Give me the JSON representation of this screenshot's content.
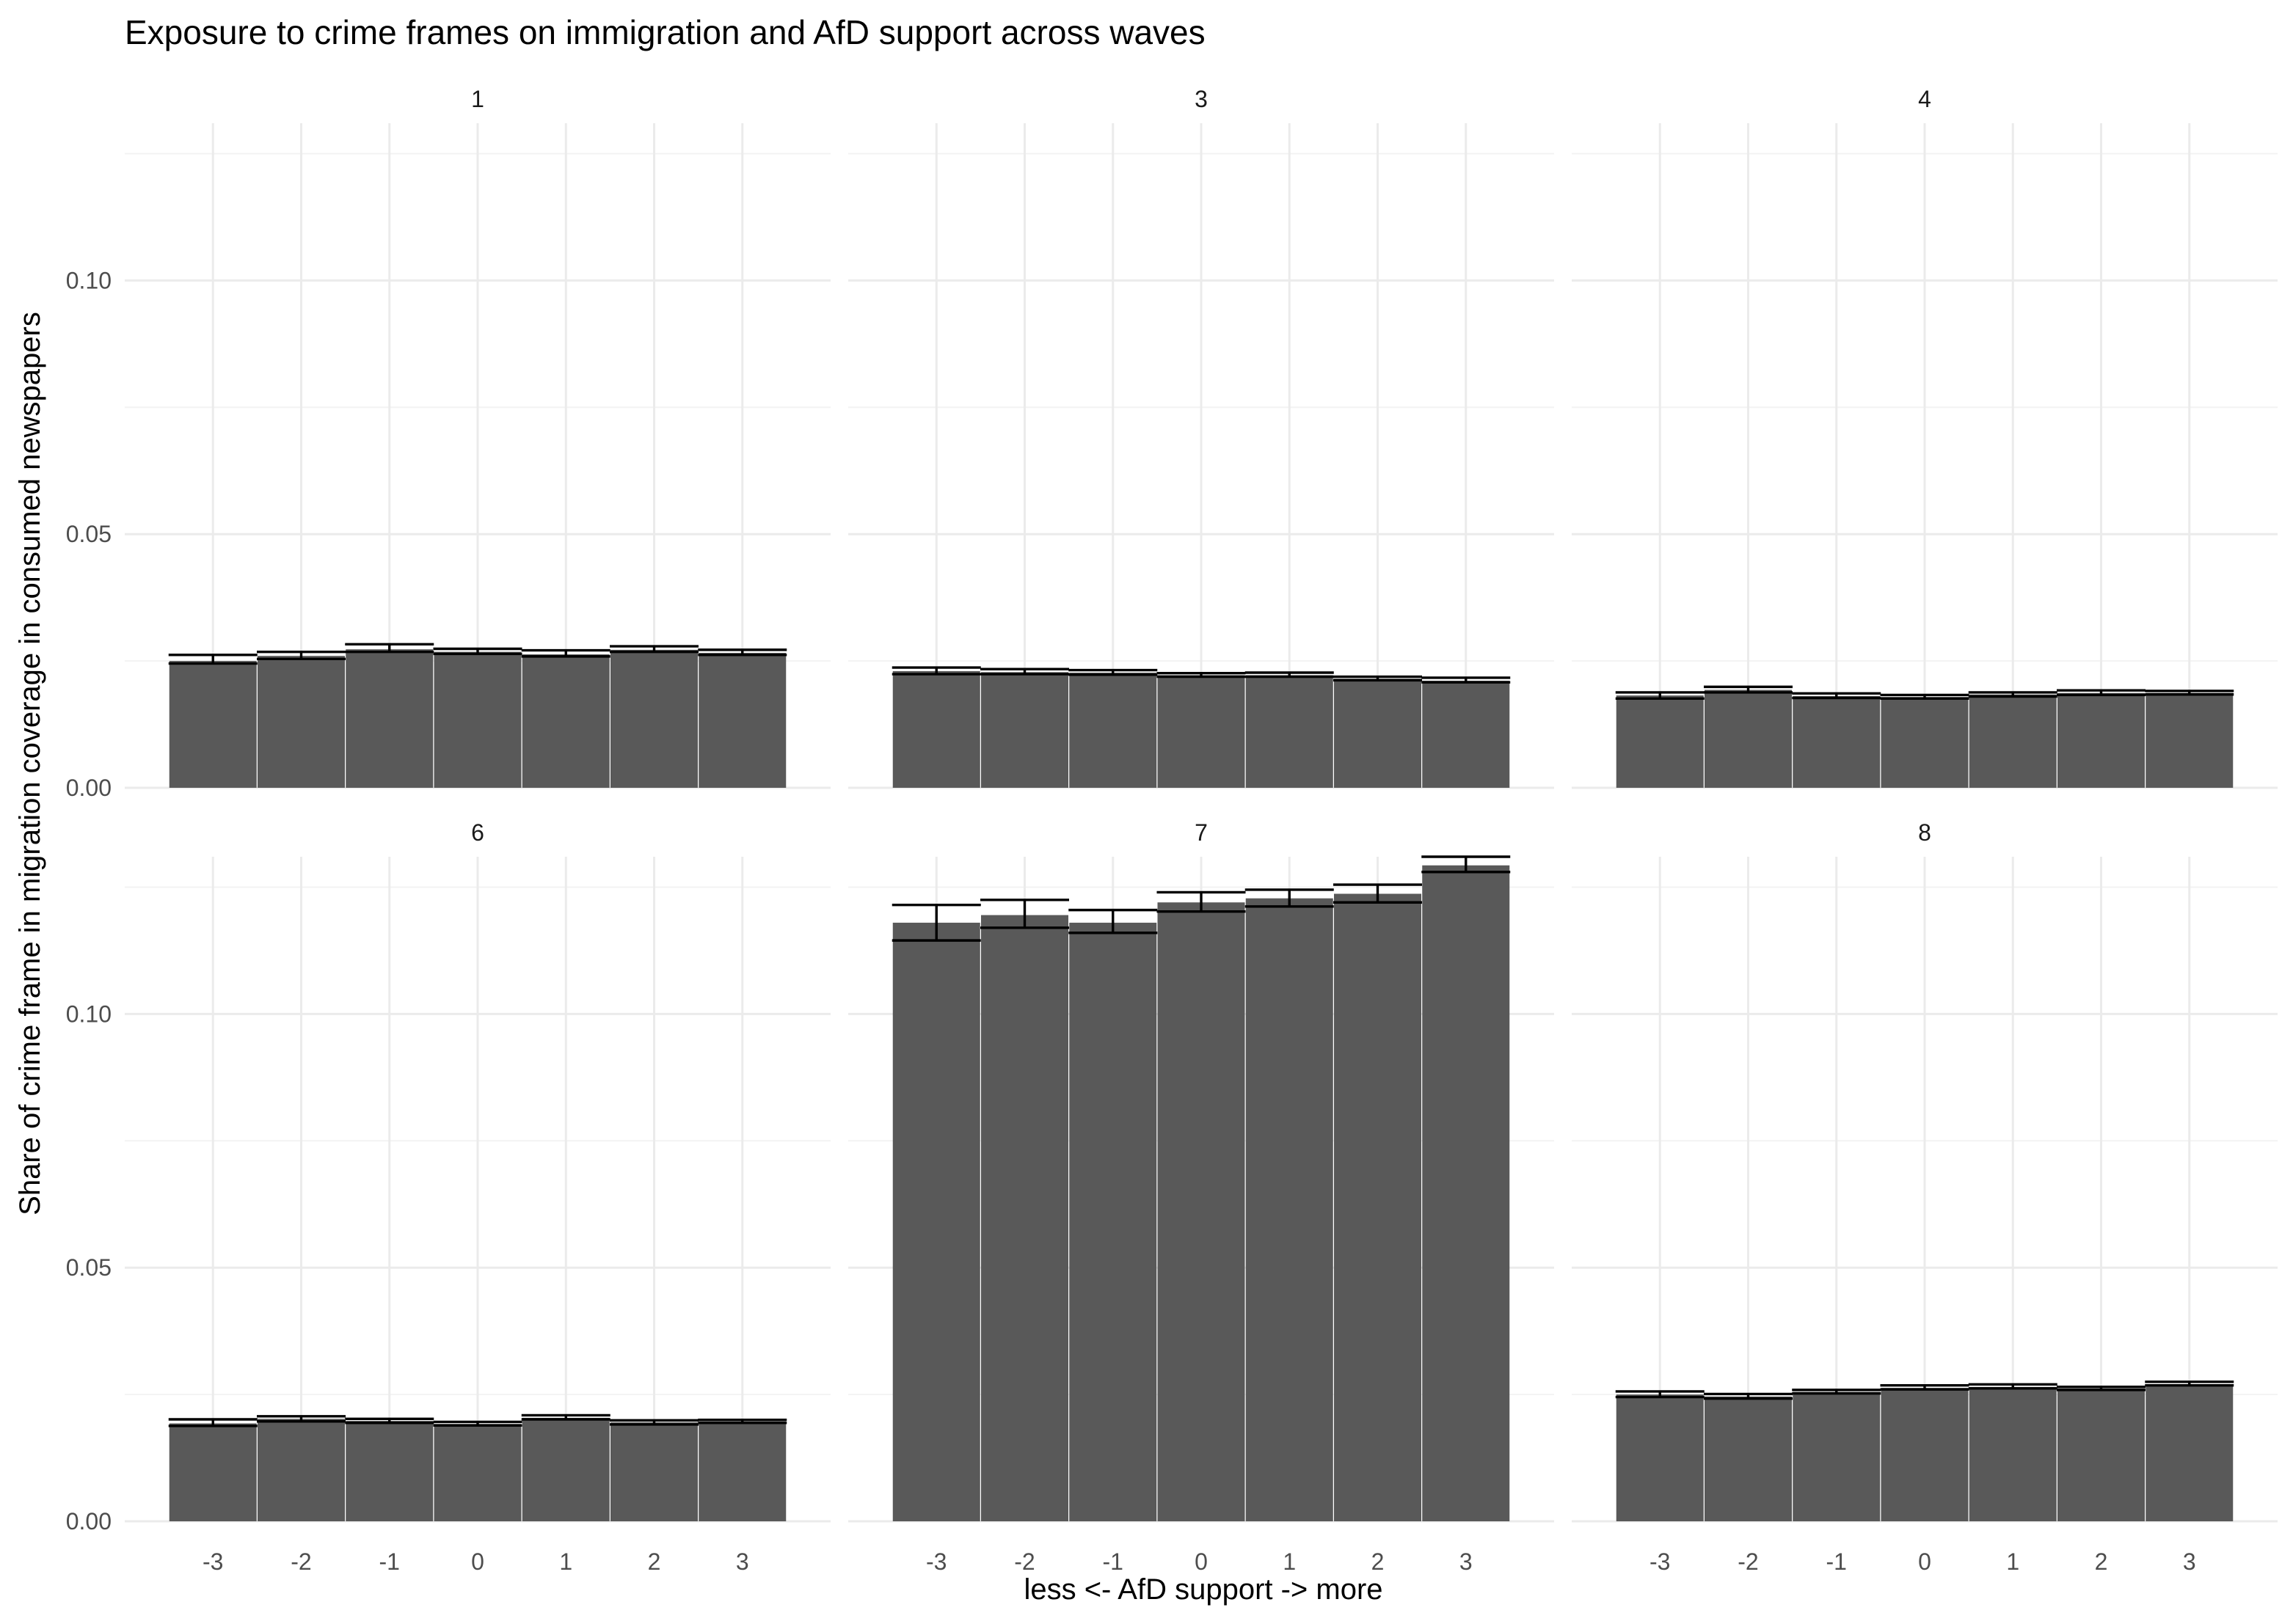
{
  "chart_data": {
    "type": "bar",
    "title": "Exposure to crime frames on immigration and AfD support across waves",
    "xlabel": "less <- AfD support -> more",
    "ylabel": "Share of crime frame in migration coverage in consumed newspapers",
    "categories": [
      "-3",
      "-2",
      "-1",
      "0",
      "1",
      "2",
      "3"
    ],
    "y_ticks": [
      "0.00",
      "0.05",
      "0.10"
    ],
    "ylim": [
      0,
      0.131
    ],
    "grid": true,
    "bar_color": "#595959",
    "error_bar_color": "#000000",
    "panels": [
      {
        "label": "1",
        "values": [
          0.025,
          0.026,
          0.0273,
          0.0268,
          0.0263,
          0.0272,
          0.0266
        ],
        "lower": [
          0.0245,
          0.0254,
          0.0268,
          0.0264,
          0.0259,
          0.0268,
          0.0262
        ],
        "upper": [
          0.0262,
          0.0268,
          0.0283,
          0.0274,
          0.0271,
          0.0279,
          0.0272
        ]
      },
      {
        "label": "3",
        "values": [
          0.023,
          0.0228,
          0.0227,
          0.0222,
          0.0222,
          0.0215,
          0.0211
        ],
        "lower": [
          0.0224,
          0.0224,
          0.0223,
          0.0219,
          0.0219,
          0.0212,
          0.0208
        ],
        "upper": [
          0.0237,
          0.0234,
          0.0232,
          0.0226,
          0.0227,
          0.0219,
          0.0217
        ]
      },
      {
        "label": "4",
        "values": [
          0.0182,
          0.0193,
          0.0181,
          0.0179,
          0.0184,
          0.0187,
          0.0187
        ],
        "lower": [
          0.0176,
          0.0188,
          0.0177,
          0.0176,
          0.018,
          0.0183,
          0.0184
        ],
        "upper": [
          0.0188,
          0.0199,
          0.0186,
          0.0183,
          0.0188,
          0.0192,
          0.0191
        ]
      },
      {
        "label": "6",
        "values": [
          0.0193,
          0.0202,
          0.0198,
          0.0192,
          0.0204,
          0.0195,
          0.0197
        ],
        "lower": [
          0.0188,
          0.0197,
          0.0194,
          0.0189,
          0.0201,
          0.0191,
          0.0194
        ],
        "upper": [
          0.0201,
          0.0207,
          0.0202,
          0.0196,
          0.0209,
          0.0199,
          0.02
        ]
      },
      {
        "label": "7",
        "values": [
          0.118,
          0.1195,
          0.118,
          0.122,
          0.1228,
          0.1237,
          0.1293
        ],
        "lower": [
          0.1145,
          0.117,
          0.116,
          0.1202,
          0.1212,
          0.122,
          0.128
        ],
        "upper": [
          0.1215,
          0.1225,
          0.1205,
          0.124,
          0.1245,
          0.1255,
          0.131
        ]
      },
      {
        "label": "8",
        "values": [
          0.025,
          0.0246,
          0.0255,
          0.0263,
          0.0265,
          0.0262,
          0.027
        ],
        "lower": [
          0.0245,
          0.0242,
          0.0252,
          0.026,
          0.0262,
          0.0259,
          0.0268
        ],
        "upper": [
          0.0256,
          0.0251,
          0.0259,
          0.0268,
          0.027,
          0.0265,
          0.0275
        ]
      }
    ]
  }
}
